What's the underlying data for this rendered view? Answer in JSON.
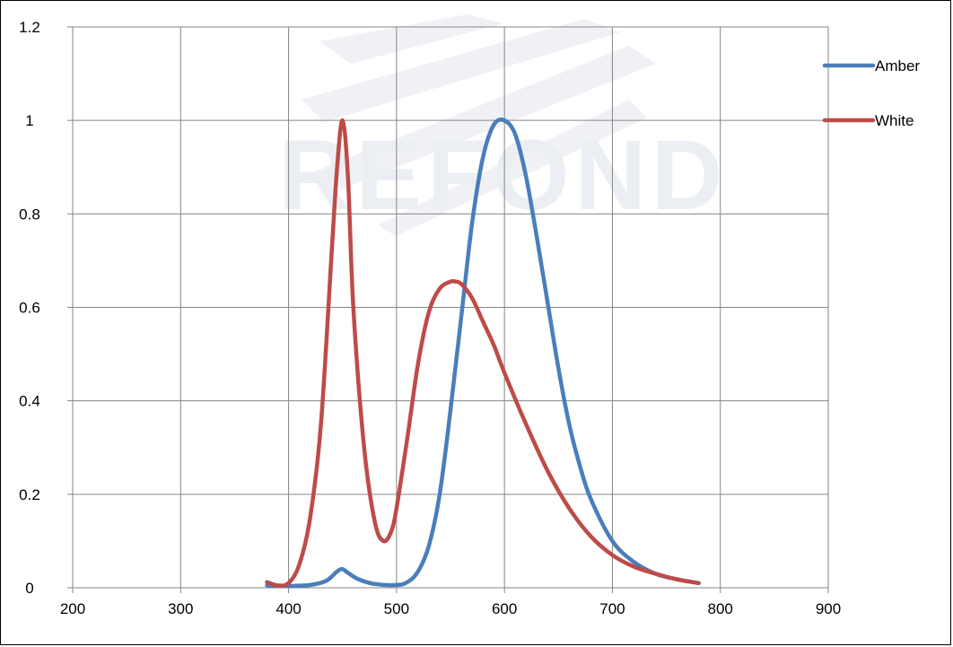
{
  "chart_data": {
    "type": "line",
    "title": "",
    "xlabel": "",
    "ylabel": "",
    "xlim": [
      200,
      900
    ],
    "ylim": [
      0,
      1.2
    ],
    "x_ticks": [
      200,
      300,
      400,
      500,
      600,
      700,
      800,
      900
    ],
    "x_tick_labels": [
      "200",
      "300",
      "400",
      "500",
      "600",
      "700",
      "800",
      "900"
    ],
    "y_ticks": [
      0,
      0.2,
      0.4,
      0.6,
      0.8,
      1,
      1.2
    ],
    "y_tick_labels": [
      "0",
      "0.2",
      "0.4",
      "0.6",
      "0.8",
      "1",
      "1.2"
    ],
    "grid": true,
    "legend_position": "top-right",
    "watermark": "REFOND",
    "series": [
      {
        "name": "Amber",
        "color": "#4a7ebb",
        "x": [
          380,
          400,
          420,
          435,
          445,
          450,
          455,
          465,
          480,
          500,
          510,
          520,
          530,
          540,
          550,
          560,
          570,
          580,
          590,
          600,
          610,
          620,
          630,
          640,
          650,
          660,
          670,
          680,
          700,
          720,
          740,
          760,
          780
        ],
        "y": [
          0.005,
          0.004,
          0.006,
          0.015,
          0.035,
          0.04,
          0.032,
          0.018,
          0.008,
          0.006,
          0.012,
          0.035,
          0.09,
          0.2,
          0.38,
          0.58,
          0.78,
          0.92,
          0.99,
          1.0,
          0.97,
          0.88,
          0.75,
          0.61,
          0.47,
          0.35,
          0.26,
          0.19,
          0.1,
          0.055,
          0.03,
          0.018,
          0.01
        ]
      },
      {
        "name": "White",
        "color": "#be4b48",
        "x": [
          380,
          390,
          400,
          410,
          420,
          430,
          440,
          445,
          450,
          455,
          460,
          470,
          480,
          488,
          495,
          500,
          510,
          520,
          530,
          540,
          550,
          555,
          560,
          570,
          580,
          590,
          600,
          620,
          640,
          660,
          680,
          700,
          720,
          740,
          760,
          780
        ],
        "y": [
          0.012,
          0.005,
          0.01,
          0.05,
          0.15,
          0.35,
          0.72,
          0.9,
          1.0,
          0.88,
          0.6,
          0.3,
          0.14,
          0.1,
          0.12,
          0.17,
          0.32,
          0.48,
          0.59,
          0.64,
          0.655,
          0.655,
          0.65,
          0.62,
          0.57,
          0.52,
          0.46,
          0.35,
          0.25,
          0.17,
          0.11,
          0.07,
          0.045,
          0.03,
          0.018,
          0.01
        ]
      }
    ]
  }
}
